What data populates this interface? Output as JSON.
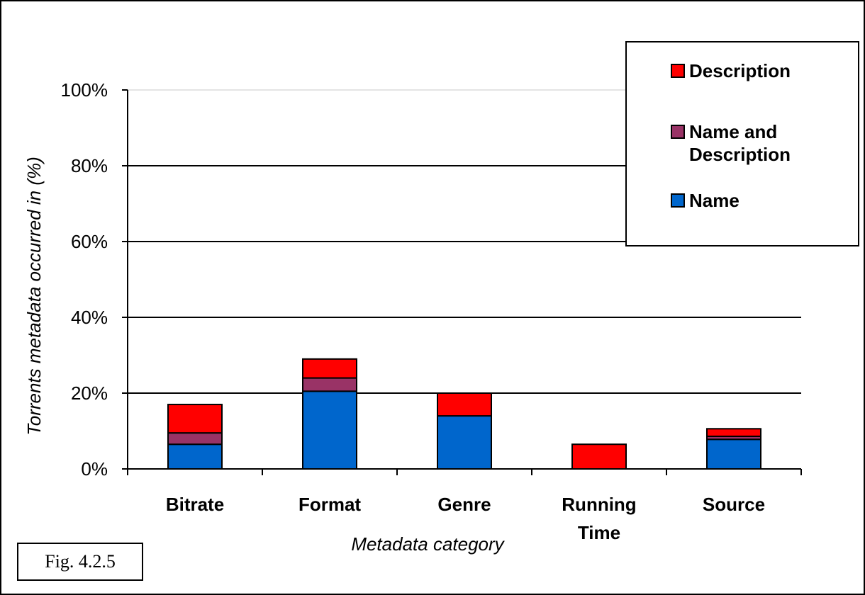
{
  "chart_data": {
    "type": "bar",
    "stacked": true,
    "categories": [
      "Bitrate",
      "Format",
      "Genre",
      "Running Time",
      "Source"
    ],
    "category_lines": [
      [
        "Bitrate"
      ],
      [
        "Format"
      ],
      [
        "Genre"
      ],
      [
        "Running",
        "Time"
      ],
      [
        "Source"
      ]
    ],
    "series": [
      {
        "name": "Name",
        "color": "#0066CC",
        "values": [
          6.5,
          20.5,
          14,
          0,
          7.8
        ]
      },
      {
        "name": "Name and Description",
        "color": "#993366",
        "values": [
          3,
          3.5,
          0,
          0,
          0.8
        ]
      },
      {
        "name": "Description",
        "color": "#FF0000",
        "values": [
          7.5,
          5,
          6,
          6.5,
          2
        ]
      }
    ],
    "ylim": [
      0,
      100
    ],
    "yticks": [
      "0%",
      "20%",
      "40%",
      "60%",
      "80%",
      "100%"
    ],
    "ytick_values": [
      0,
      20,
      40,
      60,
      80,
      100
    ],
    "xlabel": "Metadata category",
    "ylabel": "Torrents metadata occurred in (%)",
    "grid": true,
    "legend_position": "top-right",
    "legend_order": [
      "Description",
      "Name and Description",
      "Name"
    ]
  },
  "legend": {
    "description": "Description",
    "name_and_description_line1": "Name and",
    "name_and_description_line2": "Description",
    "name": "Name"
  },
  "figure_label": "Fig. 4.2.5"
}
